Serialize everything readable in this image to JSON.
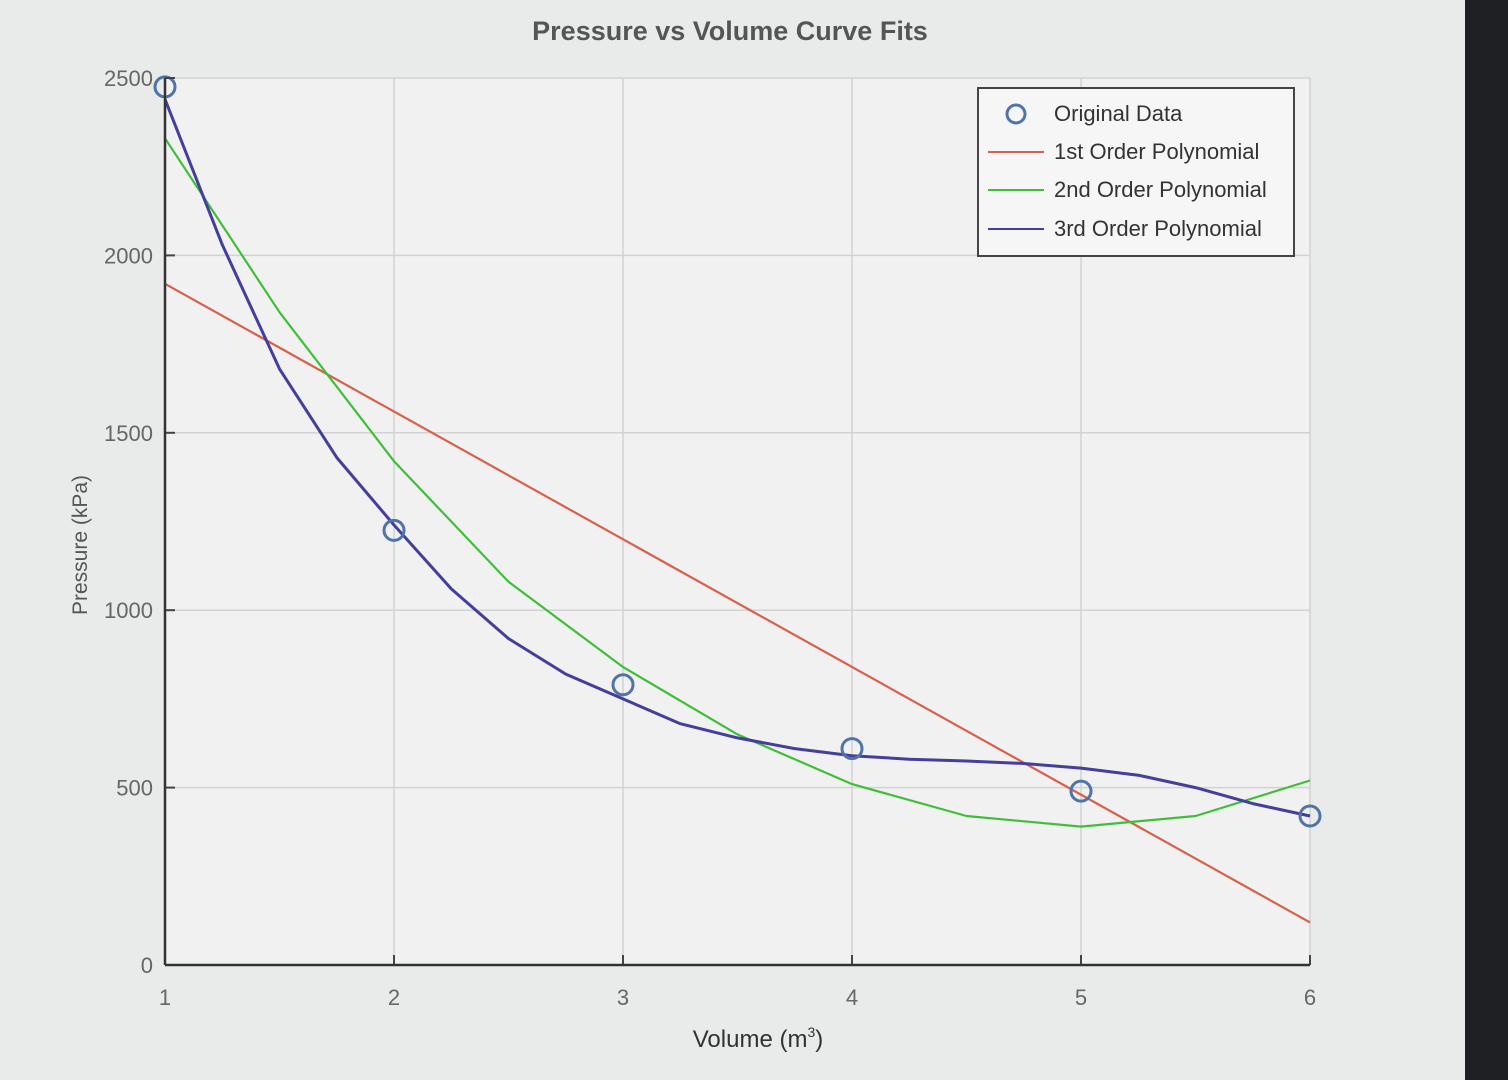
{
  "chart_data": {
    "type": "line",
    "title": "Pressure vs Volume Curve Fits",
    "xlabel": "Volume (m",
    "xlabel_sup": "3",
    "xlabel_close": ")",
    "ylabel": "Pressure (kPa)",
    "xlim": [
      1,
      6
    ],
    "ylim": [
      0,
      2500
    ],
    "xticks": [
      "1",
      "2",
      "3",
      "4",
      "5",
      "6"
    ],
    "yticks": [
      "0",
      "500",
      "1000",
      "1500",
      "2000",
      "2500"
    ],
    "grid": true,
    "legend_position": "top-right",
    "points": {
      "name": "Original Data",
      "x": [
        1,
        2,
        3,
        4,
        5,
        6
      ],
      "y": [
        2475,
        1225,
        790,
        610,
        490,
        420
      ],
      "color": "#4f74a8"
    },
    "series": [
      {
        "name": "1st Order Polynomial",
        "color": "#d9604a",
        "x": [
          1,
          6
        ],
        "y": [
          1920,
          120
        ]
      },
      {
        "name": "2nd Order Polynomial",
        "color": "#3fbf38",
        "x": [
          1,
          1.5,
          2,
          2.5,
          3,
          3.5,
          4,
          4.5,
          5,
          5.5,
          6
        ],
        "y": [
          2330,
          1840,
          1420,
          1080,
          840,
          650,
          510,
          420,
          390,
          420,
          520
        ]
      },
      {
        "name": "3rd Order Polynomial",
        "color": "#433f9a",
        "x": [
          1,
          1.25,
          1.5,
          1.75,
          2,
          2.25,
          2.5,
          2.75,
          3,
          3.25,
          3.5,
          3.75,
          4,
          4.25,
          4.5,
          4.75,
          5,
          5.25,
          5.5,
          5.75,
          6
        ],
        "y": [
          2440,
          2030,
          1680,
          1430,
          1240,
          1060,
          920,
          820,
          750,
          680,
          640,
          610,
          590,
          580,
          575,
          568,
          555,
          535,
          500,
          455,
          420
        ]
      }
    ]
  }
}
